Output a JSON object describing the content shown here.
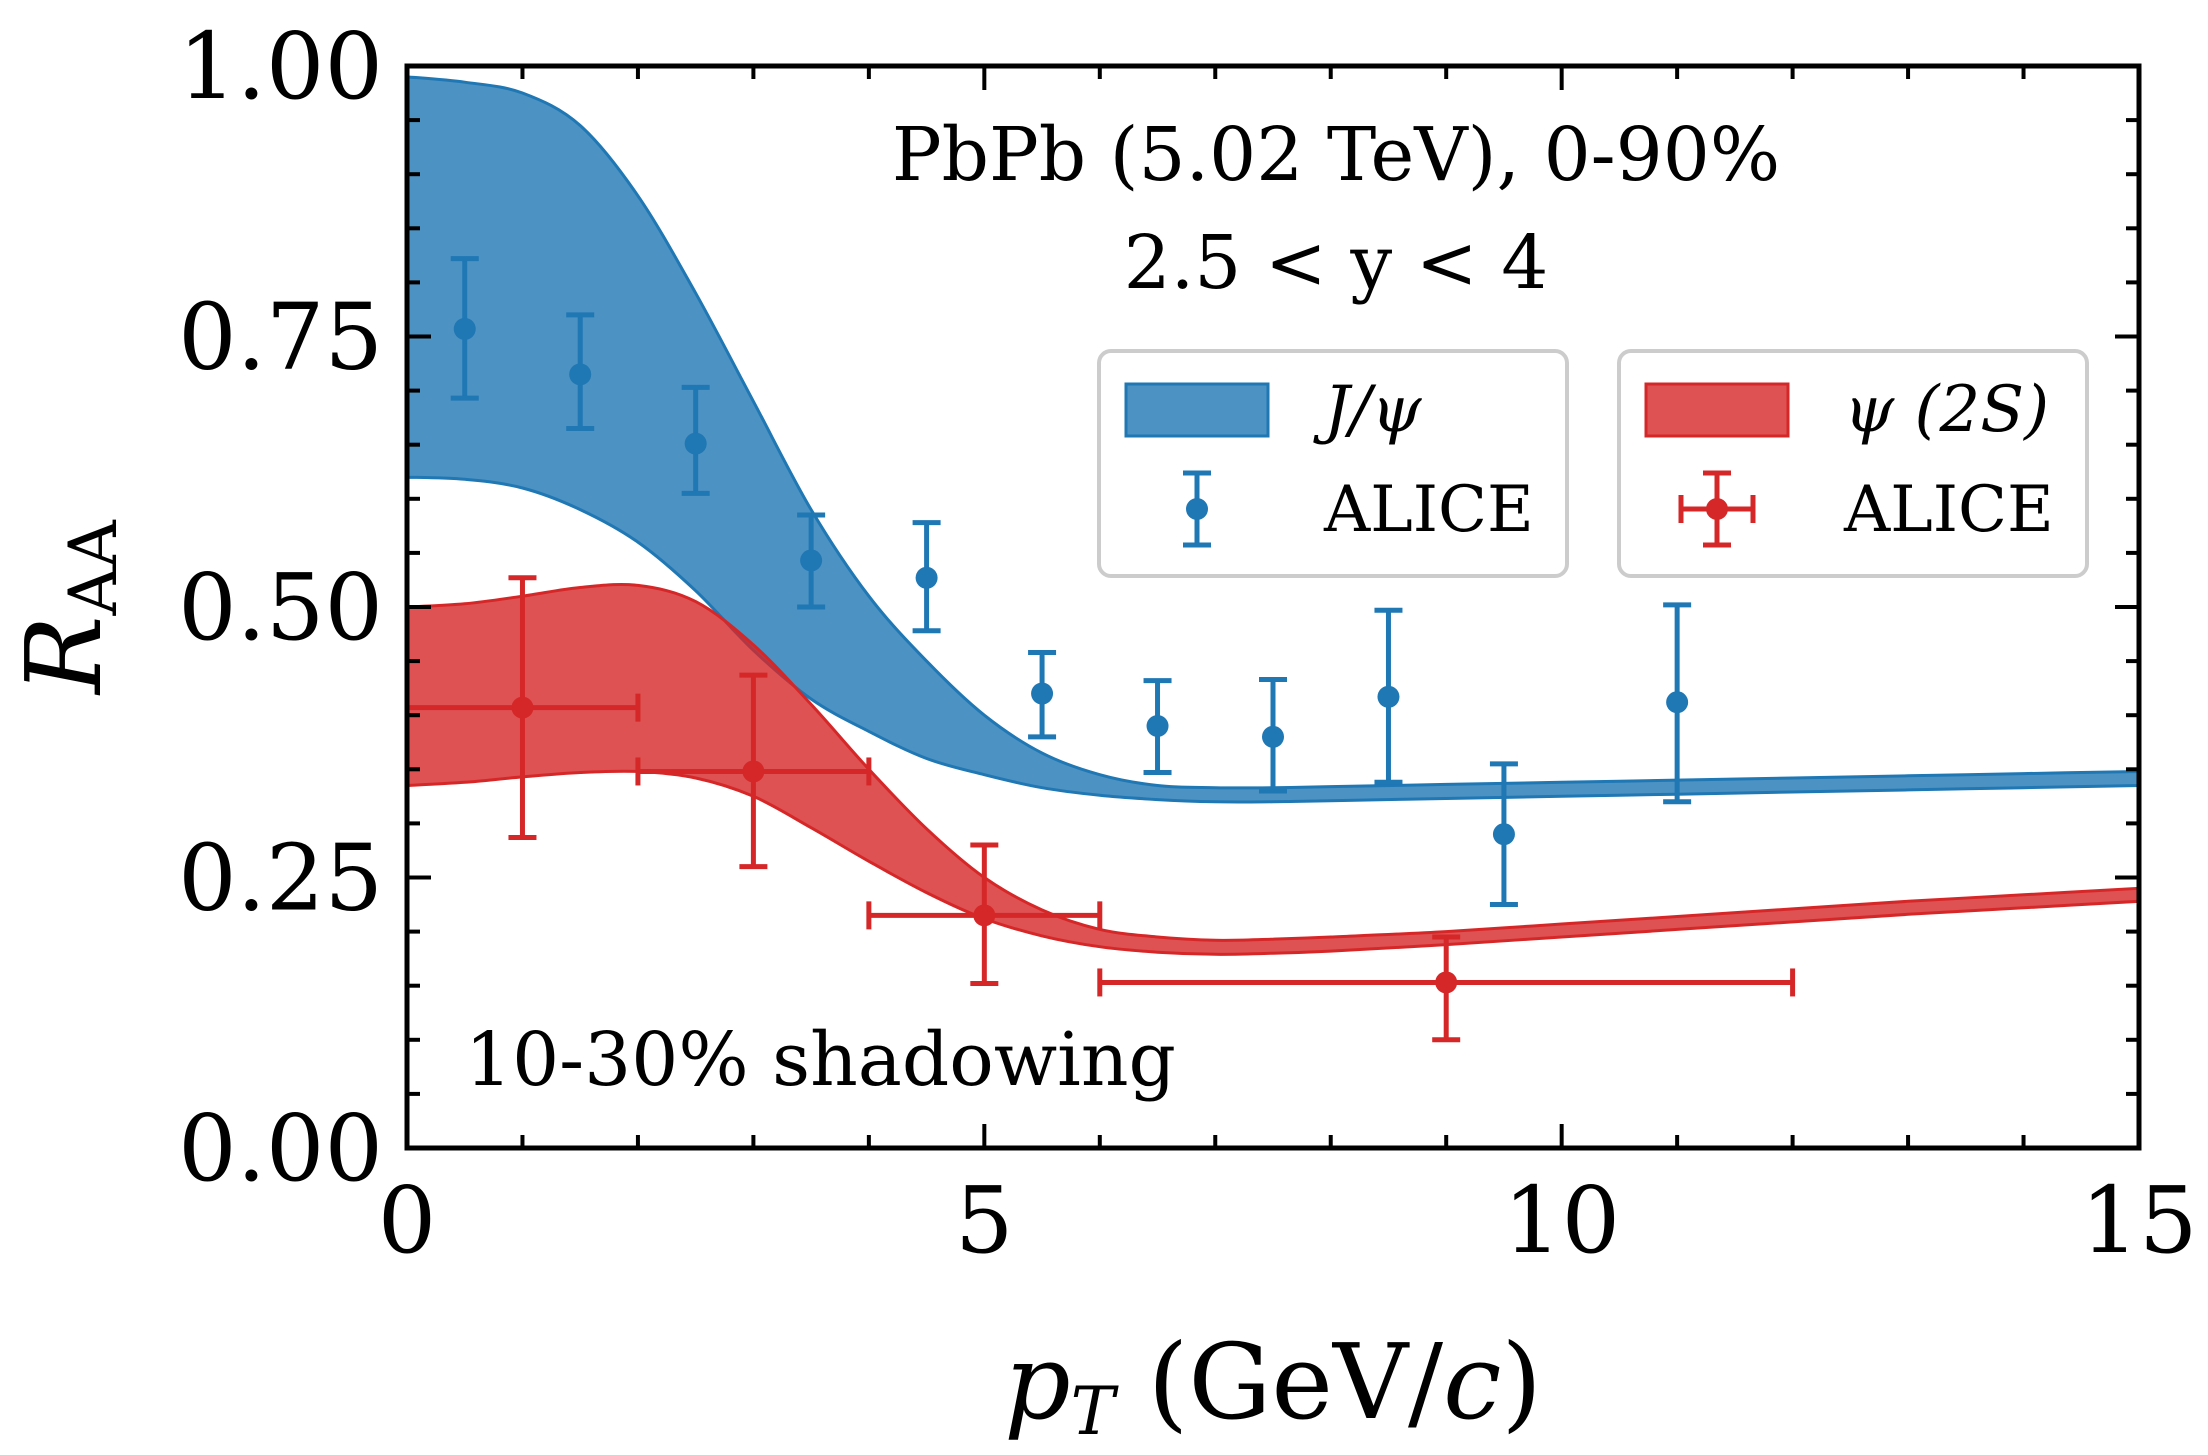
{
  "chart_data": {
    "type": "line",
    "title": "",
    "xlabel": "p_T (GeV/c)",
    "ylabel": "R_AA",
    "xlabel_parts": {
      "main": "p",
      "sub": "T",
      "rest": " (GeV/",
      "italic": "c",
      "close": ")"
    },
    "ylabel_parts": {
      "main": "R",
      "sub": "AA"
    },
    "xlim": [
      0,
      15
    ],
    "ylim": [
      0,
      1
    ],
    "x_ticks": [
      0,
      5,
      10,
      15
    ],
    "x_tick_labels": [
      "0",
      "5",
      "10",
      "15"
    ],
    "y_ticks": [
      0,
      0.25,
      0.5,
      0.75,
      1.0
    ],
    "y_tick_labels": [
      "0.00",
      "0.25",
      "0.50",
      "0.75",
      "1.00"
    ],
    "grid": false,
    "annotations": {
      "system": "PbPb (5.02 TeV), 0-90%",
      "rapidity": "2.5 < y < 4",
      "shadowing": "10-30% shadowing"
    },
    "legend_position": "upper-right",
    "bands": [
      {
        "name": "J/ψ",
        "color": "#1f77b4",
        "x": [
          0,
          0.5,
          1,
          1.5,
          2,
          2.5,
          3,
          3.5,
          4,
          4.5,
          5,
          5.5,
          6,
          6.5,
          7,
          7.5,
          8,
          9,
          10,
          11,
          12,
          13,
          14,
          15
        ],
        "upper": [
          0.99,
          0.985,
          0.975,
          0.945,
          0.88,
          0.79,
          0.69,
          0.59,
          0.51,
          0.45,
          0.4,
          0.365,
          0.345,
          0.335,
          0.333,
          0.333,
          0.334,
          0.336,
          0.338,
          0.34,
          0.342,
          0.344,
          0.346,
          0.348
        ],
        "lower": [
          0.62,
          0.618,
          0.61,
          0.59,
          0.56,
          0.515,
          0.46,
          0.415,
          0.385,
          0.36,
          0.345,
          0.333,
          0.326,
          0.322,
          0.32,
          0.32,
          0.321,
          0.323,
          0.325,
          0.327,
          0.329,
          0.331,
          0.333,
          0.335
        ]
      },
      {
        "name": "ψ (2S)",
        "color": "#d62728",
        "x": [
          0,
          0.5,
          1,
          1.5,
          2,
          2.5,
          3,
          3.5,
          4,
          4.5,
          5,
          5.5,
          6,
          6.5,
          7,
          7.5,
          8,
          9,
          10,
          11,
          12,
          13,
          14,
          15
        ],
        "upper": [
          0.5,
          0.503,
          0.51,
          0.518,
          0.52,
          0.505,
          0.465,
          0.41,
          0.35,
          0.295,
          0.25,
          0.22,
          0.202,
          0.195,
          0.192,
          0.193,
          0.195,
          0.2,
          0.207,
          0.214,
          0.221,
          0.228,
          0.234,
          0.24
        ],
        "lower": [
          0.335,
          0.338,
          0.343,
          0.347,
          0.348,
          0.342,
          0.325,
          0.296,
          0.265,
          0.236,
          0.212,
          0.196,
          0.186,
          0.181,
          0.179,
          0.18,
          0.182,
          0.188,
          0.195,
          0.202,
          0.209,
          0.216,
          0.222,
          0.228
        ]
      }
    ],
    "series": [
      {
        "name": "ALICE",
        "group": "J/ψ",
        "color": "#1f77b4",
        "points": [
          {
            "x": 0.5,
            "y": 0.757,
            "ylo": 0.693,
            "yhi": 0.822,
            "xerr": 0
          },
          {
            "x": 1.5,
            "y": 0.715,
            "ylo": 0.665,
            "yhi": 0.77,
            "xerr": 0
          },
          {
            "x": 2.5,
            "y": 0.651,
            "ylo": 0.605,
            "yhi": 0.703,
            "xerr": 0
          },
          {
            "x": 3.5,
            "y": 0.543,
            "ylo": 0.5,
            "yhi": 0.585,
            "xerr": 0
          },
          {
            "x": 4.5,
            "y": 0.527,
            "ylo": 0.478,
            "yhi": 0.578,
            "xerr": 0
          },
          {
            "x": 5.5,
            "y": 0.42,
            "ylo": 0.38,
            "yhi": 0.458,
            "xerr": 0
          },
          {
            "x": 6.5,
            "y": 0.39,
            "ylo": 0.347,
            "yhi": 0.432,
            "xerr": 0
          },
          {
            "x": 7.5,
            "y": 0.38,
            "ylo": 0.33,
            "yhi": 0.433,
            "xerr": 0
          },
          {
            "x": 8.5,
            "y": 0.417,
            "ylo": 0.338,
            "yhi": 0.497,
            "xerr": 0
          },
          {
            "x": 9.5,
            "y": 0.29,
            "ylo": 0.225,
            "yhi": 0.355,
            "xerr": 0
          },
          {
            "x": 11,
            "y": 0.412,
            "ylo": 0.32,
            "yhi": 0.502,
            "xerr": 0
          }
        ]
      },
      {
        "name": "ALICE",
        "group": "ψ (2S)",
        "color": "#d62728",
        "points": [
          {
            "x": 1,
            "y": 0.407,
            "ylo": 0.287,
            "yhi": 0.527,
            "xerr": 1
          },
          {
            "x": 3,
            "y": 0.348,
            "ylo": 0.26,
            "yhi": 0.437,
            "xerr": 1
          },
          {
            "x": 5,
            "y": 0.215,
            "ylo": 0.152,
            "yhi": 0.28,
            "xerr": 1
          },
          {
            "x": 9,
            "y": 0.153,
            "ylo": 0.1,
            "yhi": 0.195,
            "xerr": 3
          }
        ]
      }
    ],
    "legend": [
      {
        "band_label": "J/ψ",
        "marker_label": "ALICE",
        "color": "#1f77b4",
        "marker_xerr": false
      },
      {
        "band_label": "ψ (2S)",
        "marker_label": "ALICE",
        "color": "#d62728",
        "marker_xerr": true
      }
    ]
  }
}
